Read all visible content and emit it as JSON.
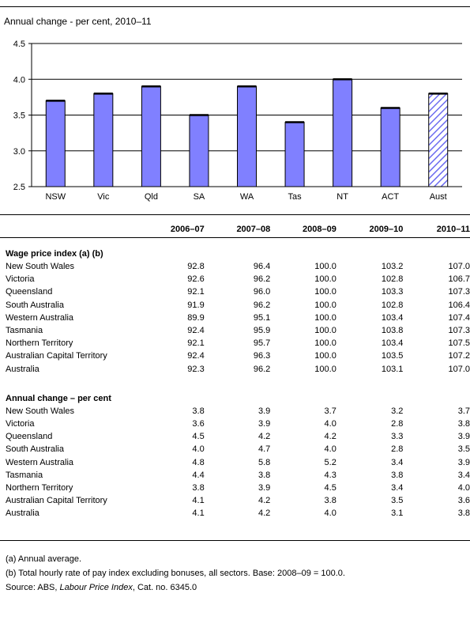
{
  "chart_data": {
    "type": "bar",
    "title": "Annual change - per cent, 2010–11",
    "categories": [
      "NSW",
      "Vic",
      "Qld",
      "SA",
      "WA",
      "Tas",
      "NT",
      "ACT",
      "Aust"
    ],
    "values": [
      3.7,
      3.8,
      3.9,
      3.5,
      3.9,
      3.4,
      4.0,
      3.6,
      3.8
    ],
    "highlight": "Aust",
    "ylim": [
      2.5,
      4.5
    ],
    "yticks": [
      "2.5",
      "3.0",
      "3.5",
      "4.0",
      "4.5"
    ],
    "grid": true,
    "colors": {
      "bar": "#8080ff",
      "highlight_hatch": "#6c6cf0"
    }
  },
  "table": {
    "columns": [
      "2006–07",
      "2007–08",
      "2008–09",
      "2009–10",
      "2010–11"
    ],
    "sections": [
      {
        "title": "Wage price index (a) (b)",
        "rows": [
          {
            "label": "New South Wales",
            "values": [
              "92.8",
              "96.4",
              "100.0",
              "103.2",
              "107.0"
            ]
          },
          {
            "label": "Victoria",
            "values": [
              "92.6",
              "96.2",
              "100.0",
              "102.8",
              "106.7"
            ]
          },
          {
            "label": "Queensland",
            "values": [
              "92.1",
              "96.0",
              "100.0",
              "103.3",
              "107.3"
            ]
          },
          {
            "label": "South Australia",
            "values": [
              "91.9",
              "96.2",
              "100.0",
              "102.8",
              "106.4"
            ]
          },
          {
            "label": "Western Australia",
            "values": [
              "89.9",
              "95.1",
              "100.0",
              "103.4",
              "107.4"
            ]
          },
          {
            "label": "Tasmania",
            "values": [
              "92.4",
              "95.9",
              "100.0",
              "103.8",
              "107.3"
            ]
          },
          {
            "label": "Northern Territory",
            "values": [
              "92.1",
              "95.7",
              "100.0",
              "103.4",
              "107.5"
            ]
          },
          {
            "label": "Australian Capital Territory",
            "values": [
              "92.4",
              "96.3",
              "100.0",
              "103.5",
              "107.2"
            ]
          },
          {
            "label": "Australia",
            "values": [
              "92.3",
              "96.2",
              "100.0",
              "103.1",
              "107.0"
            ]
          }
        ]
      },
      {
        "title": "Annual change – per cent",
        "rows": [
          {
            "label": "New South Wales",
            "values": [
              "3.8",
              "3.9",
              "3.7",
              "3.2",
              "3.7"
            ]
          },
          {
            "label": "Victoria",
            "values": [
              "3.6",
              "3.9",
              "4.0",
              "2.8",
              "3.8"
            ]
          },
          {
            "label": "Queensland",
            "values": [
              "4.5",
              "4.2",
              "4.2",
              "3.3",
              "3.9"
            ]
          },
          {
            "label": "South Australia",
            "values": [
              "4.0",
              "4.7",
              "4.0",
              "2.8",
              "3.5"
            ]
          },
          {
            "label": "Western Australia",
            "values": [
              "4.8",
              "5.8",
              "5.2",
              "3.4",
              "3.9"
            ]
          },
          {
            "label": "Tasmania",
            "values": [
              "4.4",
              "3.8",
              "4.3",
              "3.8",
              "3.4"
            ]
          },
          {
            "label": "Northern Territory",
            "values": [
              "3.8",
              "3.9",
              "4.5",
              "3.4",
              "4.0"
            ]
          },
          {
            "label": "Australian Capital Territory",
            "values": [
              "4.1",
              "4.2",
              "3.8",
              "3.5",
              "3.6"
            ]
          },
          {
            "label": "Australia",
            "values": [
              "4.1",
              "4.2",
              "4.0",
              "3.1",
              "3.8"
            ]
          }
        ]
      }
    ]
  },
  "notes": {
    "a": "(a) Annual average.",
    "b": "(b) Total hourly rate of pay index excluding bonuses, all sectors. Base: 2008–09 = 100.0.",
    "source_prefix": "Source: ABS, ",
    "source_title": "Labour Price Index",
    "source_suffix": ", Cat. no. 6345.0"
  }
}
